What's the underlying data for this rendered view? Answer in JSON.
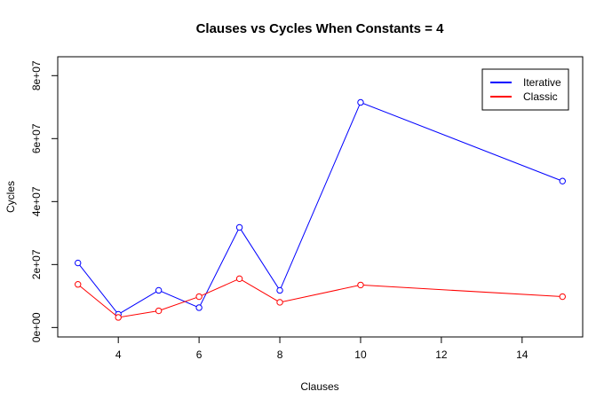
{
  "chart_data": {
    "type": "line",
    "title": "Clauses vs Cycles When Constants = 4",
    "xlabel": "Clauses",
    "ylabel": "Cycles",
    "x": [
      3,
      4,
      5,
      6,
      7,
      8,
      10,
      15
    ],
    "xlim": [
      2.5,
      15.5
    ],
    "ylim": [
      -3000000,
      86000000
    ],
    "x_ticks": [
      4,
      6,
      8,
      10,
      12,
      14
    ],
    "x_tick_labels": [
      "4",
      "6",
      "8",
      "10",
      "12",
      "14"
    ],
    "y_ticks": [
      0,
      20000000,
      40000000,
      60000000,
      80000000
    ],
    "y_tick_labels": [
      "0e+00",
      "2e+07",
      "4e+07",
      "6e+07",
      "8e+07"
    ],
    "grid": false,
    "legend_position": "top-right",
    "series": [
      {
        "name": "Iterative",
        "color": "#0000ff",
        "values": [
          20500000,
          4200000,
          11800000,
          6300000,
          31800000,
          11800000,
          71500000,
          46500000
        ]
      },
      {
        "name": "Classic",
        "color": "#ff0000",
        "values": [
          13700000,
          3200000,
          5300000,
          9800000,
          15500000,
          8000000,
          13500000,
          9800000
        ]
      }
    ]
  }
}
